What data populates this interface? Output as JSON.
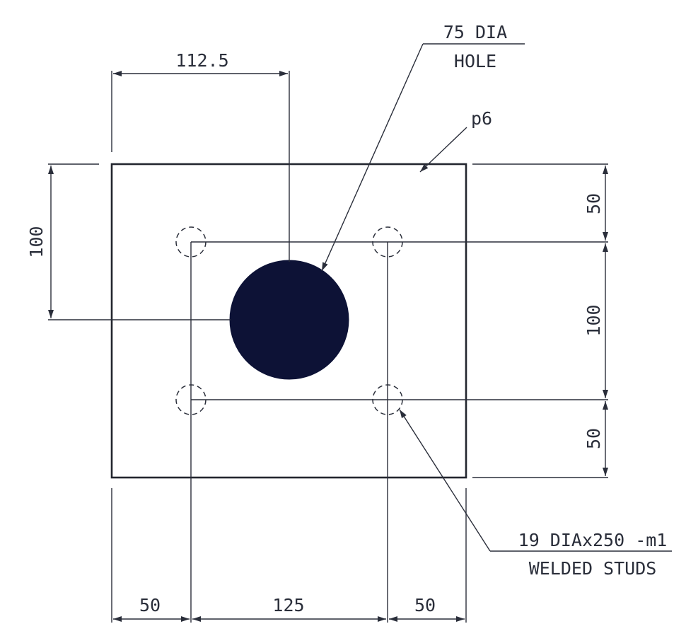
{
  "drawing": {
    "plate_label": "p6",
    "hole_callout": {
      "line1": "75 DIA",
      "line2": "HOLE"
    },
    "stud_callout": {
      "line1": "19 DIAx250 -m1",
      "line2": "WELDED STUDS"
    },
    "dimensions": {
      "top": "112.5",
      "left": "100",
      "right_top": "50",
      "right_middle": "100",
      "right_bottom": "50",
      "bottom_left": "50",
      "bottom_middle": "125",
      "bottom_right": "50"
    },
    "colors": {
      "line": "#2a2e3a",
      "hole_fill": "#0d1236",
      "background": "#ffffff"
    }
  }
}
